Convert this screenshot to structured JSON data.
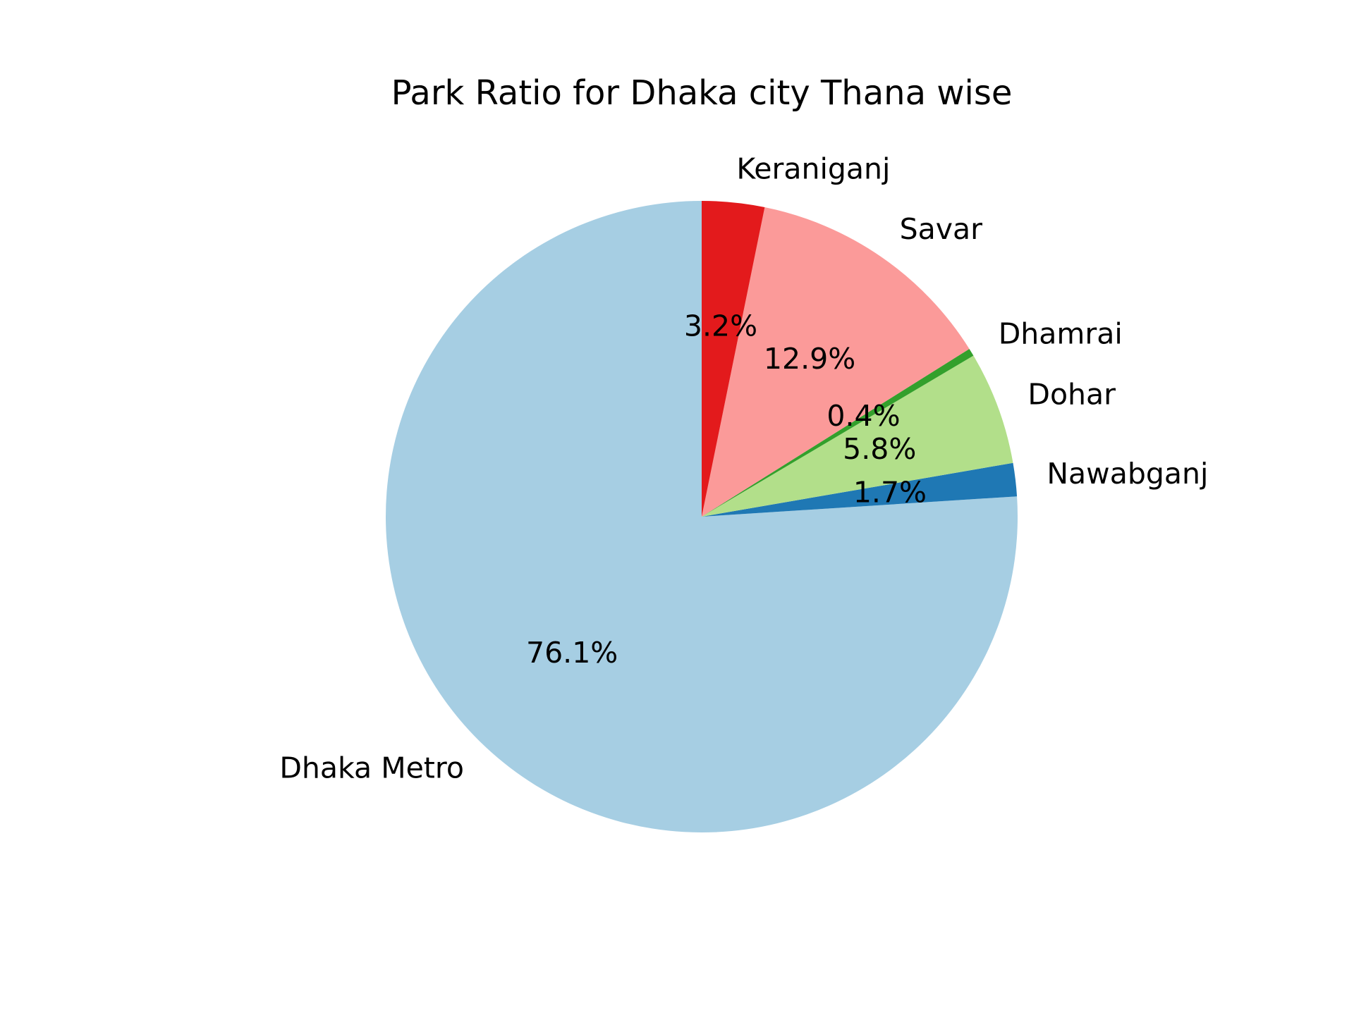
{
  "chart_data": {
    "type": "pie",
    "title": "Park Ratio for Dhaka city  Thana wise",
    "start_angle": 90,
    "direction": "counterclockwise",
    "slices": [
      {
        "label": "Dhaka Metro",
        "value": 76.1,
        "pct_label": "76.1%",
        "color": "#a6cee3"
      },
      {
        "label": "Nawabganj",
        "value": 1.7,
        "pct_label": "1.7%",
        "color": "#1f78b4"
      },
      {
        "label": "Dohar",
        "value": 5.8,
        "pct_label": "5.8%",
        "color": "#b2df8a"
      },
      {
        "label": "Dhamrai",
        "value": 0.4,
        "pct_label": "0.4%",
        "color": "#33a02c"
      },
      {
        "label": "Savar",
        "value": 12.9,
        "pct_label": "12.9%",
        "color": "#fb9a99"
      },
      {
        "label": "Keraniganj",
        "value": 3.2,
        "pct_label": "3.2%",
        "color": "#e31a1c"
      }
    ]
  }
}
